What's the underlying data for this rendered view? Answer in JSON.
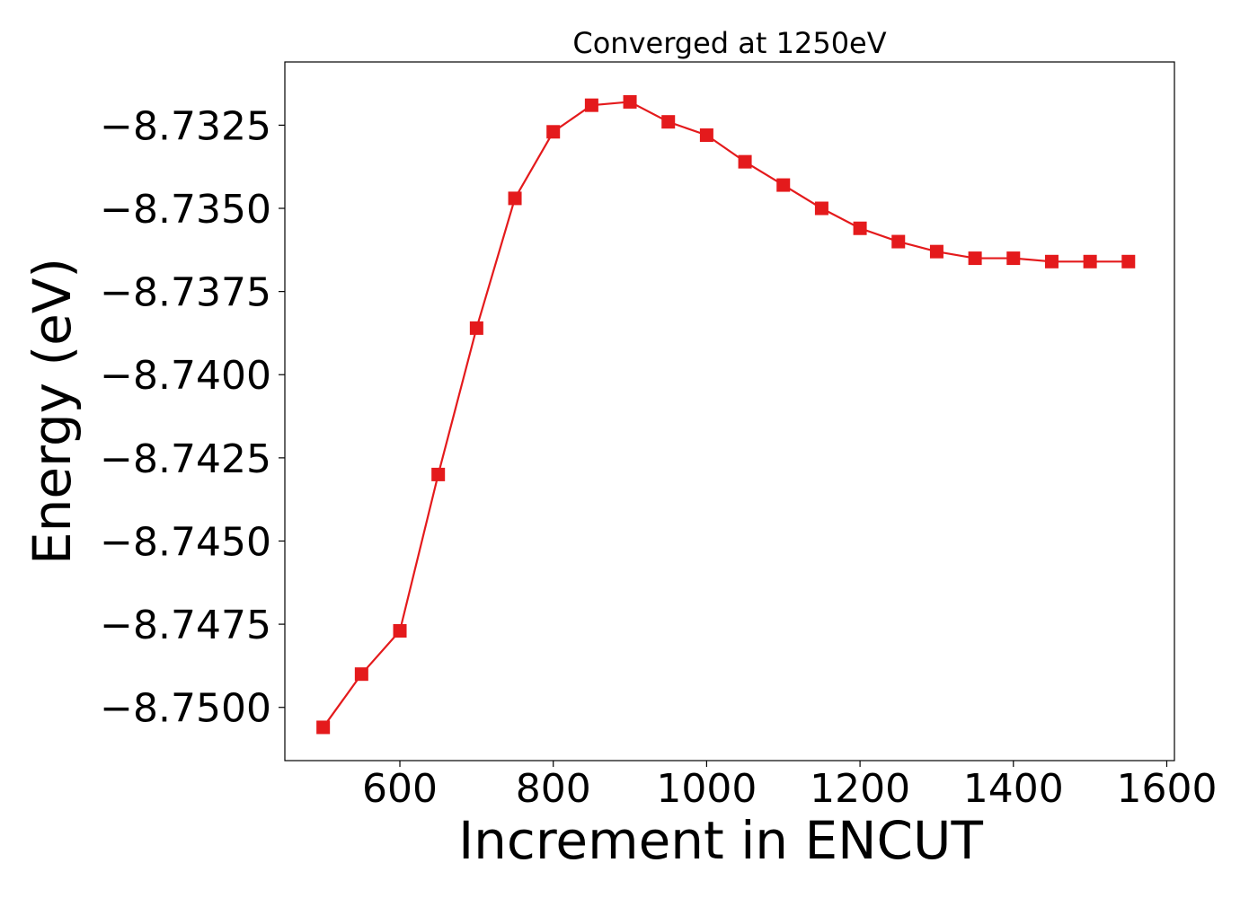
{
  "chart_data": {
    "type": "line",
    "title": "Converged at 1250eV",
    "xlabel": "Increment in ENCUT",
    "ylabel": "Energy (eV)",
    "xlim": [
      450,
      1610
    ],
    "ylim": [
      -8.7516,
      -8.7306
    ],
    "x_ticks": [
      600,
      800,
      1000,
      1200,
      1400,
      1600
    ],
    "y_ticks": [
      -8.75,
      -8.7475,
      -8.745,
      -8.7425,
      -8.74,
      -8.7375,
      -8.735,
      -8.7325
    ],
    "x_tick_labels": [
      "600",
      "800",
      "1000",
      "1200",
      "1400",
      "1600"
    ],
    "y_tick_labels": [
      "−8.7500",
      "−8.7475",
      "−8.7450",
      "−8.7425",
      "−8.7400",
      "−8.7375",
      "−8.7350",
      "−8.7325"
    ],
    "grid": false,
    "marker": "square",
    "color": "#e41a1c",
    "series": [
      {
        "x": [
          500,
          550,
          600,
          650,
          700,
          750,
          800,
          850,
          900,
          950,
          1000,
          1050,
          1100,
          1150,
          1200,
          1250,
          1300,
          1350,
          1400,
          1450,
          1500,
          1550
        ],
        "y": [
          -8.7506,
          -8.749,
          -8.7477,
          -8.743,
          -8.7386,
          -8.7347,
          -8.7327,
          -8.7319,
          -8.7318,
          -8.7324,
          -8.7328,
          -8.7336,
          -8.7343,
          -8.735,
          -8.7356,
          -8.736,
          -8.7363,
          -8.7365,
          -8.7365,
          -8.7366,
          -8.7366,
          -8.7366
        ]
      }
    ]
  }
}
